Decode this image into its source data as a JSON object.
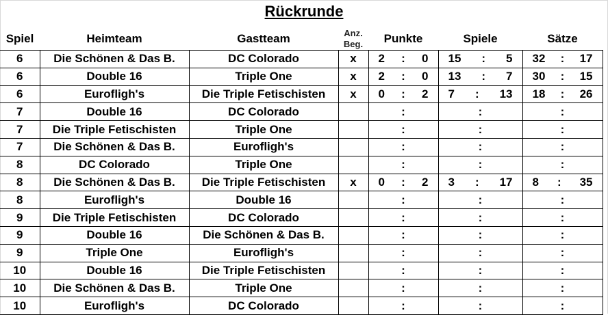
{
  "title": "Rückrunde",
  "headers": {
    "spiel": "Spiel",
    "heimteam": "Heimteam",
    "gastteam": "Gastteam",
    "anz_beg_line1": "Anz.",
    "anz_beg_line2": "Beg.",
    "punkte": "Punkte",
    "spiele": "Spiele",
    "saetze": "Sätze"
  },
  "rows": [
    {
      "spiel": "6",
      "heim": "Die Schönen & Das B.",
      "gast": "DC Colorado",
      "beg": "x",
      "p1": "2",
      "p2": "0",
      "s1": "15",
      "s2": "5",
      "x1": "32",
      "x2": "17"
    },
    {
      "spiel": "6",
      "heim": "Double 16",
      "gast": "Triple One",
      "beg": "x",
      "p1": "2",
      "p2": "0",
      "s1": "13",
      "s2": "7",
      "x1": "30",
      "x2": "15"
    },
    {
      "spiel": "6",
      "heim": "Eurofligh's",
      "gast": "Die Triple Fetischisten",
      "beg": "x",
      "p1": "0",
      "p2": "2",
      "s1": "7",
      "s2": "13",
      "x1": "18",
      "x2": "26"
    },
    {
      "spiel": "7",
      "heim": "Double 16",
      "gast": "DC Colorado",
      "beg": "",
      "p1": "",
      "p2": "",
      "s1": "",
      "s2": "",
      "x1": "",
      "x2": ""
    },
    {
      "spiel": "7",
      "heim": "Die Triple Fetischisten",
      "gast": "Triple One",
      "beg": "",
      "p1": "",
      "p2": "",
      "s1": "",
      "s2": "",
      "x1": "",
      "x2": ""
    },
    {
      "spiel": "7",
      "heim": "Die Schönen & Das B.",
      "gast": "Eurofligh's",
      "beg": "",
      "p1": "",
      "p2": "",
      "s1": "",
      "s2": "",
      "x1": "",
      "x2": ""
    },
    {
      "spiel": "8",
      "heim": "DC Colorado",
      "gast": "Triple One",
      "beg": "",
      "p1": "",
      "p2": "",
      "s1": "",
      "s2": "",
      "x1": "",
      "x2": ""
    },
    {
      "spiel": "8",
      "heim": "Die Schönen & Das B.",
      "gast": "Die Triple Fetischisten",
      "beg": "x",
      "p1": "0",
      "p2": "2",
      "s1": "3",
      "s2": "17",
      "x1": "8",
      "x2": "35"
    },
    {
      "spiel": "8",
      "heim": "Eurofligh's",
      "gast": "Double 16",
      "beg": "",
      "p1": "",
      "p2": "",
      "s1": "",
      "s2": "",
      "x1": "",
      "x2": ""
    },
    {
      "spiel": "9",
      "heim": "Die Triple Fetischisten",
      "gast": "DC Colorado",
      "beg": "",
      "p1": "",
      "p2": "",
      "s1": "",
      "s2": "",
      "x1": "",
      "x2": ""
    },
    {
      "spiel": "9",
      "heim": "Double 16",
      "gast": "Die Schönen & Das B.",
      "beg": "",
      "p1": "",
      "p2": "",
      "s1": "",
      "s2": "",
      "x1": "",
      "x2": ""
    },
    {
      "spiel": "9",
      "heim": "Triple One",
      "gast": "Eurofligh's",
      "beg": "",
      "p1": "",
      "p2": "",
      "s1": "",
      "s2": "",
      "x1": "",
      "x2": ""
    },
    {
      "spiel": "10",
      "heim": "Double 16",
      "gast": "Die Triple Fetischisten",
      "beg": "",
      "p1": "",
      "p2": "",
      "s1": "",
      "s2": "",
      "x1": "",
      "x2": ""
    },
    {
      "spiel": "10",
      "heim": "Die Schönen & Das B.",
      "gast": "Triple One",
      "beg": "",
      "p1": "",
      "p2": "",
      "s1": "",
      "s2": "",
      "x1": "",
      "x2": ""
    },
    {
      "spiel": "10",
      "heim": "Eurofligh's",
      "gast": "DC Colorado",
      "beg": "",
      "p1": "",
      "p2": "",
      "s1": "",
      "s2": "",
      "x1": "",
      "x2": ""
    }
  ],
  "separator": ":"
}
